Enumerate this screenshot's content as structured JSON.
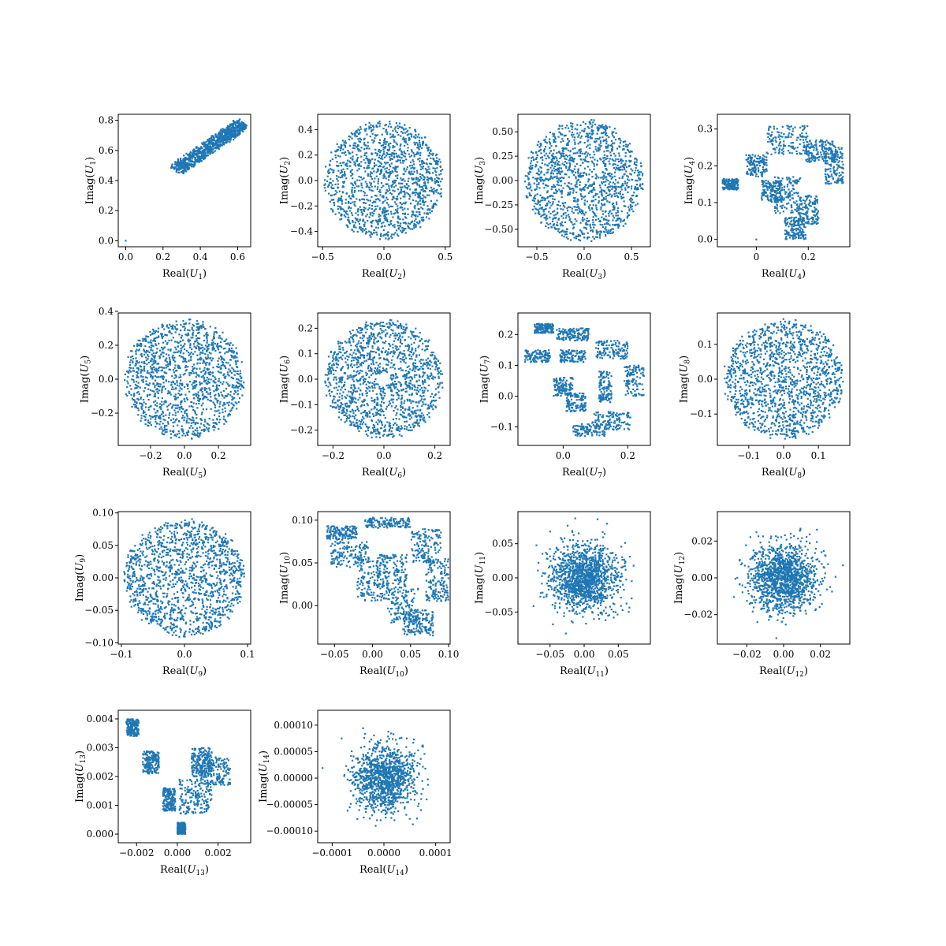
{
  "figure": {
    "background": "#ffffff",
    "point_color": "#1f77b4"
  },
  "chart_data": [
    {
      "type": "scatter",
      "index": 1,
      "xlabel": "Real(U1)",
      "ylabel": "Imag(U1)",
      "xlim": [
        -0.04,
        0.67
      ],
      "ylim": [
        -0.04,
        0.84
      ],
      "xticks": [
        {
          "v": 0.0,
          "label": "0.0"
        },
        {
          "v": 0.2,
          "label": "0.2"
        },
        {
          "v": 0.4,
          "label": "0.4"
        },
        {
          "v": 0.6,
          "label": "0.6"
        }
      ],
      "yticks": [
        {
          "v": 0.0,
          "label": "0.0"
        },
        {
          "v": 0.2,
          "label": "0.2"
        },
        {
          "v": 0.4,
          "label": "0.4"
        },
        {
          "v": 0.6,
          "label": "0.6"
        },
        {
          "v": 0.8,
          "label": "0.8"
        }
      ],
      "shape": {
        "kind": "band",
        "x0": 0.27,
        "y0": 0.47,
        "x1": 0.63,
        "y1": 0.78,
        "width": 0.09,
        "count": 900,
        "origin_point": true
      }
    },
    {
      "type": "scatter",
      "index": 2,
      "xlabel": "Real(U2)",
      "ylabel": "Imag(U2)",
      "xlim": [
        -0.54,
        0.54
      ],
      "ylim": [
        -0.52,
        0.52
      ],
      "xticks": [
        {
          "v": -0.5,
          "label": "−0.5"
        },
        {
          "v": 0.0,
          "label": "0.0"
        },
        {
          "v": 0.5,
          "label": "0.5"
        }
      ],
      "yticks": [
        {
          "v": -0.4,
          "label": "−0.4"
        },
        {
          "v": -0.2,
          "label": "−0.2"
        },
        {
          "v": 0.0,
          "label": "0.0"
        },
        {
          "v": 0.2,
          "label": "0.2"
        },
        {
          "v": 0.4,
          "label": "0.4"
        }
      ],
      "shape": {
        "kind": "disk",
        "rx": 0.48,
        "ry": 0.46,
        "hole": 0,
        "count": 1400
      }
    },
    {
      "type": "scatter",
      "index": 3,
      "xlabel": "Real(U3)",
      "ylabel": "Imag(U3)",
      "xlim": [
        -0.7,
        0.7
      ],
      "ylim": [
        -0.68,
        0.68
      ],
      "xticks": [
        {
          "v": -0.5,
          "label": "−0.5"
        },
        {
          "v": 0.0,
          "label": "0.0"
        },
        {
          "v": 0.5,
          "label": "0.5"
        }
      ],
      "yticks": [
        {
          "v": -0.5,
          "label": "−0.50"
        },
        {
          "v": -0.25,
          "label": "−0.25"
        },
        {
          "v": 0.0,
          "label": "0.00"
        },
        {
          "v": 0.25,
          "label": "0.25"
        },
        {
          "v": 0.5,
          "label": "0.50"
        }
      ],
      "shape": {
        "kind": "disk",
        "rx": 0.62,
        "ry": 0.62,
        "hole": 0.03,
        "count": 1400
      }
    },
    {
      "type": "scatter",
      "index": 4,
      "xlabel": "Real(U4)",
      "ylabel": "Imag(U4)",
      "xlim": [
        -0.15,
        0.36
      ],
      "ylim": [
        -0.02,
        0.34
      ],
      "xticks": [
        {
          "v": 0.0,
          "label": "0"
        },
        {
          "v": 0.2,
          "label": "0.2"
        }
      ],
      "yticks": [
        {
          "v": 0.0,
          "label": "0.0"
        },
        {
          "v": 0.1,
          "label": "0.1"
        },
        {
          "v": 0.2,
          "label": "0.2"
        },
        {
          "v": 0.3,
          "label": "0.3"
        }
      ],
      "shape": {
        "kind": "blobs",
        "count": 1300,
        "origin_point": true,
        "blobs": [
          [
            -0.1,
            0.15,
            0.03,
            0.015
          ],
          [
            0.0,
            0.2,
            0.04,
            0.03
          ],
          [
            0.12,
            0.27,
            0.08,
            0.04
          ],
          [
            0.3,
            0.2,
            0.035,
            0.05
          ],
          [
            0.25,
            0.24,
            0.06,
            0.03
          ],
          [
            0.12,
            0.12,
            0.05,
            0.05
          ],
          [
            0.15,
            0.03,
            0.04,
            0.03
          ],
          [
            0.06,
            0.13,
            0.04,
            0.03
          ],
          [
            0.2,
            0.08,
            0.04,
            0.04
          ]
        ]
      }
    },
    {
      "type": "scatter",
      "index": 5,
      "xlabel": "Real(U5)",
      "ylabel": "Imag(U5)",
      "xlim": [
        -0.39,
        0.39
      ],
      "ylim": [
        -0.39,
        0.39
      ],
      "xticks": [
        {
          "v": -0.2,
          "label": "−0.2"
        },
        {
          "v": 0.0,
          "label": "0.0"
        },
        {
          "v": 0.2,
          "label": "0.2"
        }
      ],
      "yticks": [
        {
          "v": -0.2,
          "label": "−0.2"
        },
        {
          "v": 0.0,
          "label": "0.0"
        },
        {
          "v": 0.2,
          "label": "0.2"
        },
        {
          "v": 0.4,
          "label": "0.4"
        }
      ],
      "shape": {
        "kind": "disk",
        "rx": 0.35,
        "ry": 0.35,
        "hole": 0.015,
        "count": 1400
      }
    },
    {
      "type": "scatter",
      "index": 6,
      "xlabel": "Real(U6)",
      "ylabel": "Imag(U6)",
      "xlim": [
        -0.26,
        0.26
      ],
      "ylim": [
        -0.26,
        0.26
      ],
      "xticks": [
        {
          "v": -0.2,
          "label": "−0.2"
        },
        {
          "v": 0.0,
          "label": "0.0"
        },
        {
          "v": 0.2,
          "label": "0.2"
        }
      ],
      "yticks": [
        {
          "v": -0.2,
          "label": "−0.2"
        },
        {
          "v": -0.1,
          "label": "−0.1"
        },
        {
          "v": 0.0,
          "label": "0.0"
        },
        {
          "v": 0.1,
          "label": "0.1"
        },
        {
          "v": 0.2,
          "label": "0.2"
        }
      ],
      "shape": {
        "kind": "disk",
        "rx": 0.23,
        "ry": 0.23,
        "hole": 0.022,
        "count": 1400
      }
    },
    {
      "type": "scatter",
      "index": 7,
      "xlabel": "Real(U7)",
      "ylabel": "Imag(U7)",
      "xlim": [
        -0.14,
        0.27
      ],
      "ylim": [
        -0.16,
        0.27
      ],
      "xticks": [
        {
          "v": 0.0,
          "label": "0.0"
        },
        {
          "v": 0.2,
          "label": "0.2"
        }
      ],
      "yticks": [
        {
          "v": -0.1,
          "label": "−0.1"
        },
        {
          "v": 0.0,
          "label": "0.0"
        },
        {
          "v": 0.1,
          "label": "0.1"
        },
        {
          "v": 0.2,
          "label": "0.2"
        }
      ],
      "shape": {
        "kind": "blobs",
        "count": 1300,
        "blobs": [
          [
            -0.06,
            0.22,
            0.03,
            0.015
          ],
          [
            0.03,
            0.2,
            0.05,
            0.02
          ],
          [
            0.15,
            0.15,
            0.05,
            0.03
          ],
          [
            0.22,
            0.05,
            0.03,
            0.05
          ],
          [
            0.15,
            -0.08,
            0.06,
            0.03
          ],
          [
            0.08,
            -0.11,
            0.05,
            0.02
          ],
          [
            -0.08,
            0.13,
            0.04,
            0.02
          ],
          [
            0.03,
            0.13,
            0.04,
            0.02
          ],
          [
            0.0,
            0.03,
            0.03,
            0.03
          ],
          [
            0.04,
            -0.02,
            0.03,
            0.03
          ],
          [
            0.13,
            0.03,
            0.02,
            0.05
          ]
        ]
      }
    },
    {
      "type": "scatter",
      "index": 8,
      "xlabel": "Real(U8)",
      "ylabel": "Imag(U8)",
      "xlim": [
        -0.19,
        0.19
      ],
      "ylim": [
        -0.19,
        0.19
      ],
      "xticks": [
        {
          "v": -0.1,
          "label": "−0.1"
        },
        {
          "v": 0.0,
          "label": "0.0"
        },
        {
          "v": 0.1,
          "label": "0.1"
        }
      ],
      "yticks": [
        {
          "v": -0.1,
          "label": "−0.1"
        },
        {
          "v": 0.0,
          "label": "0.0"
        },
        {
          "v": 0.1,
          "label": "0.1"
        }
      ],
      "shape": {
        "kind": "disk",
        "rx": 0.17,
        "ry": 0.17,
        "hole": 0,
        "count": 1400
      }
    },
    {
      "type": "scatter",
      "index": 9,
      "xlabel": "Real(U9)",
      "ylabel": "Imag(U9)",
      "xlim": [
        -0.105,
        0.105
      ],
      "ylim": [
        -0.102,
        0.102
      ],
      "xticks": [
        {
          "v": -0.1,
          "label": "−0.1"
        },
        {
          "v": 0.0,
          "label": "0.0"
        },
        {
          "v": 0.1,
          "label": "0.1"
        }
      ],
      "yticks": [
        {
          "v": -0.1,
          "label": "−0.10"
        },
        {
          "v": -0.05,
          "label": "−0.05"
        },
        {
          "v": 0.0,
          "label": "0.00"
        },
        {
          "v": 0.05,
          "label": "0.05"
        },
        {
          "v": 0.1,
          "label": "0.10"
        }
      ],
      "shape": {
        "kind": "disk",
        "rx": 0.095,
        "ry": 0.09,
        "hole": 0.003,
        "count": 1400
      }
    },
    {
      "type": "scatter",
      "index": 10,
      "xlabel": "Real(U10)",
      "ylabel": "Imag(U10)",
      "xlim": [
        -0.072,
        0.102
      ],
      "ylim": [
        -0.045,
        0.11
      ],
      "xticks": [
        {
          "v": -0.05,
          "label": "−0.05"
        },
        {
          "v": 0.0,
          "label": "0.00"
        },
        {
          "v": 0.05,
          "label": "0.05"
        },
        {
          "v": 0.1,
          "label": "0.10"
        }
      ],
      "yticks": [
        {
          "v": 0.0,
          "label": "0.00"
        },
        {
          "v": 0.05,
          "label": "0.05"
        },
        {
          "v": 0.1,
          "label": "0.10"
        }
      ],
      "shape": {
        "kind": "blobs",
        "count": 1300,
        "blobs": [
          [
            -0.04,
            0.085,
            0.02,
            0.008
          ],
          [
            0.02,
            0.097,
            0.03,
            0.006
          ],
          [
            0.07,
            0.07,
            0.02,
            0.02
          ],
          [
            0.085,
            0.03,
            0.015,
            0.025
          ],
          [
            0.06,
            -0.02,
            0.02,
            0.015
          ],
          [
            -0.03,
            0.06,
            0.025,
            0.015
          ],
          [
            0.0,
            0.03,
            0.02,
            0.025
          ],
          [
            0.025,
            0.04,
            0.02,
            0.02
          ],
          [
            0.04,
            0.0,
            0.02,
            0.02
          ]
        ]
      }
    },
    {
      "type": "scatter",
      "index": 11,
      "xlabel": "Real(U11)",
      "ylabel": "Imag(U11)",
      "xlim": [
        -0.097,
        0.097
      ],
      "ylim": [
        -0.097,
        0.097
      ],
      "xticks": [
        {
          "v": -0.05,
          "label": "−0.05"
        },
        {
          "v": 0.0,
          "label": "0.00"
        },
        {
          "v": 0.05,
          "label": "0.05"
        }
      ],
      "yticks": [
        {
          "v": -0.05,
          "label": "−0.05"
        },
        {
          "v": 0.0,
          "label": "0.00"
        },
        {
          "v": 0.05,
          "label": "0.05"
        }
      ],
      "shape": {
        "kind": "gauss",
        "sx": 0.024,
        "sy": 0.024,
        "clip": 0.088,
        "count": 1400
      }
    },
    {
      "type": "scatter",
      "index": 12,
      "xlabel": "Real(U12)",
      "ylabel": "Imag(U12)",
      "xlim": [
        -0.036,
        0.036
      ],
      "ylim": [
        -0.036,
        0.036
      ],
      "xticks": [
        {
          "v": -0.02,
          "label": "−0.02"
        },
        {
          "v": 0.0,
          "label": "0.00"
        },
        {
          "v": 0.02,
          "label": "0.02"
        }
      ],
      "yticks": [
        {
          "v": -0.02,
          "label": "−0.02"
        },
        {
          "v": 0.0,
          "label": "0.00"
        },
        {
          "v": 0.02,
          "label": "0.02"
        }
      ],
      "shape": {
        "kind": "gauss",
        "sx": 0.009,
        "sy": 0.009,
        "clip": 0.033,
        "count": 1400
      }
    },
    {
      "type": "scatter",
      "index": 13,
      "xlabel": "Real(U13)",
      "ylabel": "Imag(U13)",
      "xlim": [
        -0.0029,
        0.0036
      ],
      "ylim": [
        -0.0003,
        0.0043
      ],
      "xticks": [
        {
          "v": -0.002,
          "label": "−0.002"
        },
        {
          "v": 0.0,
          "label": "0.000"
        },
        {
          "v": 0.002,
          "label": "0.002"
        }
      ],
      "yticks": [
        {
          "v": 0.0,
          "label": "0.000"
        },
        {
          "v": 0.001,
          "label": "0.001"
        },
        {
          "v": 0.002,
          "label": "0.002"
        },
        {
          "v": 0.003,
          "label": "0.003"
        },
        {
          "v": 0.004,
          "label": "0.004"
        }
      ],
      "shape": {
        "kind": "blobs",
        "count": 1300,
        "blobs": [
          [
            -0.0022,
            0.0037,
            0.0003,
            0.0003
          ],
          [
            -0.0013,
            0.0025,
            0.0004,
            0.0004
          ],
          [
            -0.0004,
            0.0012,
            0.0003,
            0.0004
          ],
          [
            0.0002,
            0.0002,
            0.0002,
            0.0002
          ],
          [
            0.0009,
            0.0013,
            0.0008,
            0.0006
          ],
          [
            0.0018,
            0.0022,
            0.0008,
            0.0005
          ],
          [
            0.0012,
            0.0025,
            0.0005,
            0.0005
          ]
        ]
      }
    },
    {
      "type": "scatter",
      "index": 14,
      "xlabel": "Real(U14)",
      "ylabel": "Imag(U14)",
      "xlim": [
        -0.000128,
        0.000128
      ],
      "ylim": [
        -0.000122,
        0.000128
      ],
      "xticks": [
        {
          "v": -0.0001,
          "label": "−0.0001"
        },
        {
          "v": 0.0,
          "label": "0.0000"
        },
        {
          "v": 0.0001,
          "label": "0.0001"
        }
      ],
      "yticks": [
        {
          "v": -0.0001,
          "label": "−0.00010"
        },
        {
          "v": -5e-05,
          "label": "−0.00005"
        },
        {
          "v": 0.0,
          "label": "0.00000"
        },
        {
          "v": 5e-05,
          "label": "0.00005"
        },
        {
          "v": 0.0001,
          "label": "0.00010"
        }
      ],
      "shape": {
        "kind": "gauss",
        "sx": 3e-05,
        "sy": 3e-05,
        "clip": 0.00012,
        "count": 1200
      }
    }
  ]
}
